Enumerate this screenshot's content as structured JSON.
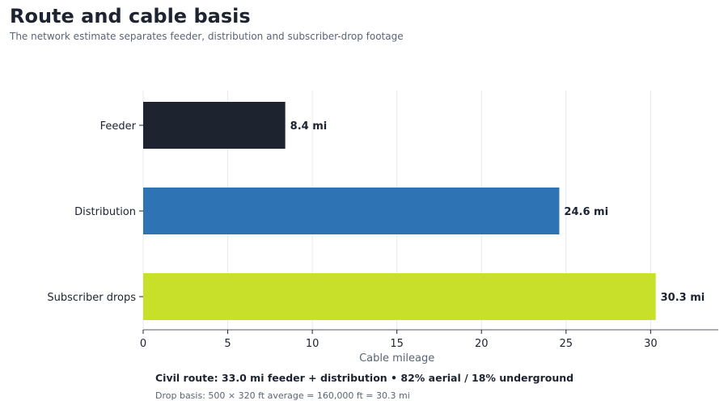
{
  "header": {
    "title": "Route and cable basis",
    "subtitle": "The network estimate separates feeder, distribution and subscriber-drop footage"
  },
  "chart_data": {
    "type": "bar",
    "orientation": "horizontal",
    "categories": [
      "Feeder",
      "Distribution",
      "Subscriber drops"
    ],
    "values": [
      8.4,
      24.6,
      30.3
    ],
    "value_labels": [
      "8.4 mi",
      "24.6 mi",
      "30.3 mi"
    ],
    "colors": [
      "#1e2330",
      "#2e74b5",
      "#c9e02a"
    ],
    "xlabel": "Cable mileage",
    "ylabel": "",
    "xlim": [
      0,
      34
    ],
    "xticks": [
      0,
      5,
      10,
      15,
      20,
      25,
      30
    ],
    "grid": true
  },
  "notes": {
    "summary": "Civil route: 33.0 mi feeder + distribution • 82% aerial / 18% underground",
    "basis": "Drop basis: 500 × 320 ft average = 160,000 ft = 30.3 mi"
  }
}
